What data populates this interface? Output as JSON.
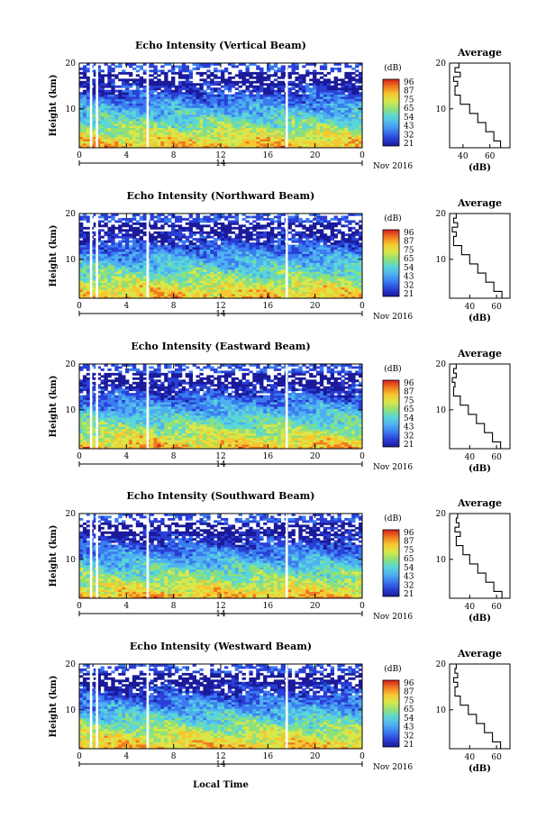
{
  "figure": {
    "xlabel": "Local Time",
    "date_label": "Nov 2016",
    "day_label": "14",
    "colorbar_unit": "(dB)",
    "colorbar_ticks": [
      "96",
      "87",
      "75",
      "65",
      "54",
      "43",
      "32",
      "21"
    ],
    "profile_title": "Average",
    "profile_xlabel": "(dB)",
    "ylabel": "Height (km)",
    "colormap": [
      "#1a1a9a",
      "#2a3fd6",
      "#3a7cf0",
      "#4fb0f0",
      "#5ad6d6",
      "#8fe07a",
      "#d8e84a",
      "#f5c830",
      "#f07a20",
      "#d81e1e"
    ]
  },
  "chart_data": [
    {
      "type": "heatmap",
      "title": "Echo Intensity (Vertical Beam)",
      "ylabel": "Height (km)",
      "xlabel": "",
      "x_ticks": [
        "0",
        "4",
        "8",
        "12",
        "16",
        "20",
        "0"
      ],
      "x_range_hours": [
        0,
        24
      ],
      "y_ticks": [
        "10",
        "20"
      ],
      "y_range_km": [
        1.5,
        20
      ],
      "colorbar_ticks_db": [
        96,
        87,
        75,
        65,
        54,
        43,
        32,
        21
      ],
      "data_gaps_hours": [
        1.0,
        1.5,
        5.8,
        17.6
      ],
      "profile": {
        "title": "Average",
        "xlabel": "(dB)",
        "x_ticks": [
          "40",
          "60"
        ],
        "x_range": [
          30,
          75
        ],
        "height_km": [
          1.5,
          3,
          5,
          7,
          9,
          11,
          13,
          15,
          16,
          17,
          18,
          19,
          20
        ],
        "db": [
          72,
          68,
          63,
          57,
          51,
          45,
          38,
          34,
          36,
          33,
          38,
          34,
          37
        ]
      }
    },
    {
      "type": "heatmap",
      "title": "Echo Intensity (Northward Beam)",
      "ylabel": "Height (km)",
      "xlabel": "",
      "x_ticks": [
        "0",
        "4",
        "8",
        "12",
        "16",
        "20",
        "0"
      ],
      "x_range_hours": [
        0,
        24
      ],
      "y_ticks": [
        "10",
        "20"
      ],
      "y_range_km": [
        1.5,
        20
      ],
      "colorbar_ticks_db": [
        96,
        87,
        75,
        65,
        54,
        43,
        32,
        21
      ],
      "data_gaps_hours": [
        1.0,
        1.5,
        5.8,
        17.6
      ],
      "profile": {
        "title": "Average",
        "xlabel": "(dB)",
        "x_ticks": [
          "40",
          "60"
        ],
        "x_range": [
          25,
          70
        ],
        "height_km": [
          1.5,
          3,
          5,
          7,
          9,
          11,
          13,
          15,
          16,
          17,
          18,
          19,
          20
        ],
        "db": [
          68,
          64,
          58,
          52,
          46,
          40,
          34,
          28,
          30,
          27,
          31,
          28,
          30
        ]
      }
    },
    {
      "type": "heatmap",
      "title": "Echo Intensity (Eastward Beam)",
      "ylabel": "Height (km)",
      "xlabel": "",
      "x_ticks": [
        "0",
        "4",
        "8",
        "12",
        "16",
        "20",
        "0"
      ],
      "x_range_hours": [
        0,
        24
      ],
      "y_ticks": [
        "10",
        "20"
      ],
      "y_range_km": [
        1.5,
        20
      ],
      "colorbar_ticks_db": [
        96,
        87,
        75,
        65,
        54,
        43,
        32,
        21
      ],
      "data_gaps_hours": [
        1.0,
        1.5,
        5.8,
        17.6
      ],
      "profile": {
        "title": "Average",
        "xlabel": "(dB)",
        "x_ticks": [
          "40",
          "60"
        ],
        "x_range": [
          25,
          70
        ],
        "height_km": [
          1.5,
          3,
          5,
          7,
          9,
          11,
          13,
          15,
          16,
          17,
          18,
          19,
          20
        ],
        "db": [
          68,
          63,
          57,
          51,
          45,
          39,
          33,
          28,
          29,
          27,
          30,
          28,
          30
        ]
      }
    },
    {
      "type": "heatmap",
      "title": "Echo Intensity (Southward Beam)",
      "ylabel": "Height (km)",
      "xlabel": "",
      "x_ticks": [
        "0",
        "4",
        "8",
        "12",
        "16",
        "20",
        "0"
      ],
      "x_range_hours": [
        0,
        24
      ],
      "y_ticks": [
        "10",
        "20"
      ],
      "y_range_km": [
        1.5,
        20
      ],
      "colorbar_ticks_db": [
        96,
        87,
        75,
        65,
        54,
        43,
        32,
        21
      ],
      "data_gaps_hours": [
        1.0,
        1.5,
        5.8,
        17.6
      ],
      "profile": {
        "title": "Average",
        "xlabel": "(dB)",
        "x_ticks": [
          "40",
          "60"
        ],
        "x_range": [
          25,
          70
        ],
        "height_km": [
          1.5,
          3,
          5,
          7,
          9,
          11,
          13,
          15,
          16,
          17,
          18,
          19,
          20
        ],
        "db": [
          69,
          64,
          58,
          52,
          46,
          40,
          35,
          30,
          33,
          29,
          32,
          30,
          31
        ]
      }
    },
    {
      "type": "heatmap",
      "title": "Echo Intensity (Westward Beam)",
      "ylabel": "Height (km)",
      "xlabel": "Local Time",
      "x_ticks": [
        "0",
        "4",
        "8",
        "12",
        "16",
        "20",
        "0"
      ],
      "x_range_hours": [
        0,
        24
      ],
      "y_ticks": [
        "10",
        "20"
      ],
      "y_range_km": [
        1.5,
        20
      ],
      "colorbar_ticks_db": [
        96,
        87,
        75,
        65,
        54,
        43,
        32,
        21
      ],
      "data_gaps_hours": [
        1.0,
        1.5,
        5.8,
        17.6
      ],
      "profile": {
        "title": "Average",
        "xlabel": "(dB)",
        "x_ticks": [
          "40",
          "60"
        ],
        "x_range": [
          25,
          70
        ],
        "height_km": [
          1.5,
          3,
          5,
          7,
          9,
          11,
          13,
          15,
          16,
          17,
          18,
          19,
          20
        ],
        "db": [
          68,
          63,
          57,
          51,
          45,
          39,
          33,
          29,
          31,
          28,
          31,
          29,
          30
        ]
      }
    }
  ]
}
